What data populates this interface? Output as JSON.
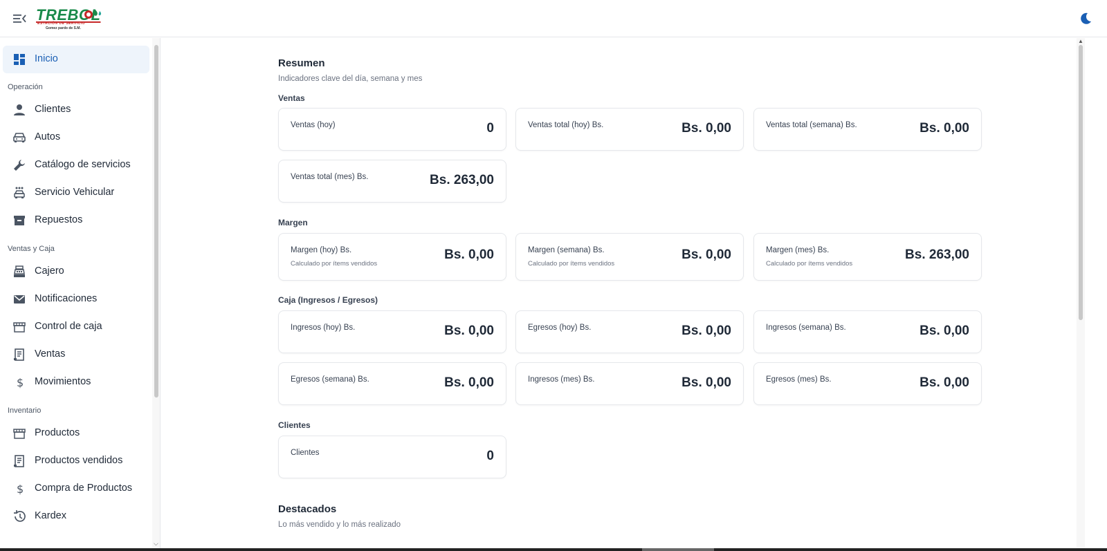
{
  "header": {
    "logo_text": "TREBOL",
    "logo_sub1": "ESTACIÓN DE SERVICIO",
    "logo_sub2": "Gomez pardo de S.M."
  },
  "sidebar": {
    "top_item": {
      "label": "Inicio",
      "icon": "dashboard-icon"
    },
    "sections": [
      {
        "label": "Operación",
        "items": [
          {
            "label": "Clientes",
            "icon": "person-icon"
          },
          {
            "label": "Autos",
            "icon": "car-icon"
          },
          {
            "label": "Catálogo de servicios",
            "icon": "wrench-icon"
          },
          {
            "label": "Servicio Vehicular",
            "icon": "car-wash-icon"
          },
          {
            "label": "Repuestos",
            "icon": "archive-icon"
          }
        ]
      },
      {
        "label": "Ventas y Caja",
        "items": [
          {
            "label": "Cajero",
            "icon": "cash-register-icon"
          },
          {
            "label": "Notificaciones",
            "icon": "mail-icon"
          },
          {
            "label": "Control de caja",
            "icon": "store-icon"
          },
          {
            "label": "Ventas",
            "icon": "receipt-icon"
          },
          {
            "label": "Movimientos",
            "icon": "dollar-icon"
          }
        ]
      },
      {
        "label": "Inventario",
        "items": [
          {
            "label": "Productos",
            "icon": "store-icon"
          },
          {
            "label": "Productos vendidos",
            "icon": "receipt-icon"
          },
          {
            "label": "Compra de Productos",
            "icon": "dollar-icon"
          },
          {
            "label": "Kardex",
            "icon": "history-icon"
          }
        ]
      }
    ]
  },
  "main": {
    "title": "Resumen",
    "subtitle": "Indicadores clave del día, semana y mes",
    "groups": {
      "ventas": {
        "label": "Ventas",
        "cards": [
          {
            "label": "Ventas (hoy)",
            "value": "0"
          },
          {
            "label": "Ventas total (hoy) Bs.",
            "value": "Bs. 0,00"
          },
          {
            "label": "Ventas total (semana) Bs.",
            "value": "Bs. 0,00"
          },
          {
            "label": "Ventas total (mes) Bs.",
            "value": "Bs. 263,00"
          }
        ]
      },
      "margen": {
        "label": "Margen",
        "cards": [
          {
            "label": "Margen (hoy) Bs.",
            "note": "Calculado por ítems vendidos",
            "value": "Bs. 0,00"
          },
          {
            "label": "Margen (semana) Bs.",
            "note": "Calculado por ítems vendidos",
            "value": "Bs. 0,00"
          },
          {
            "label": "Margen (mes) Bs.",
            "note": "Calculado por ítems vendidos",
            "value": "Bs. 263,00"
          }
        ]
      },
      "caja": {
        "label": "Caja (Ingresos / Egresos)",
        "cards": [
          {
            "label": "Ingresos (hoy) Bs.",
            "value": "Bs. 0,00"
          },
          {
            "label": "Egresos (hoy) Bs.",
            "value": "Bs. 0,00"
          },
          {
            "label": "Ingresos (semana) Bs.",
            "value": "Bs. 0,00"
          },
          {
            "label": "Egresos (semana) Bs.",
            "value": "Bs. 0,00"
          },
          {
            "label": "Ingresos (mes) Bs.",
            "value": "Bs. 0,00"
          },
          {
            "label": "Egresos (mes) Bs.",
            "value": "Bs. 0,00"
          }
        ]
      },
      "clientes": {
        "label": "Clientes",
        "cards": [
          {
            "label": "Clientes",
            "value": "0"
          }
        ]
      }
    },
    "highlights_title": "Destacados",
    "highlights_subtitle": "Lo más vendido y lo más realizado"
  },
  "colors": {
    "accent": "#1a5fb4",
    "active_bg": "#eef4fb",
    "logo_green": "#1a8a4a",
    "logo_red": "#c62828"
  }
}
